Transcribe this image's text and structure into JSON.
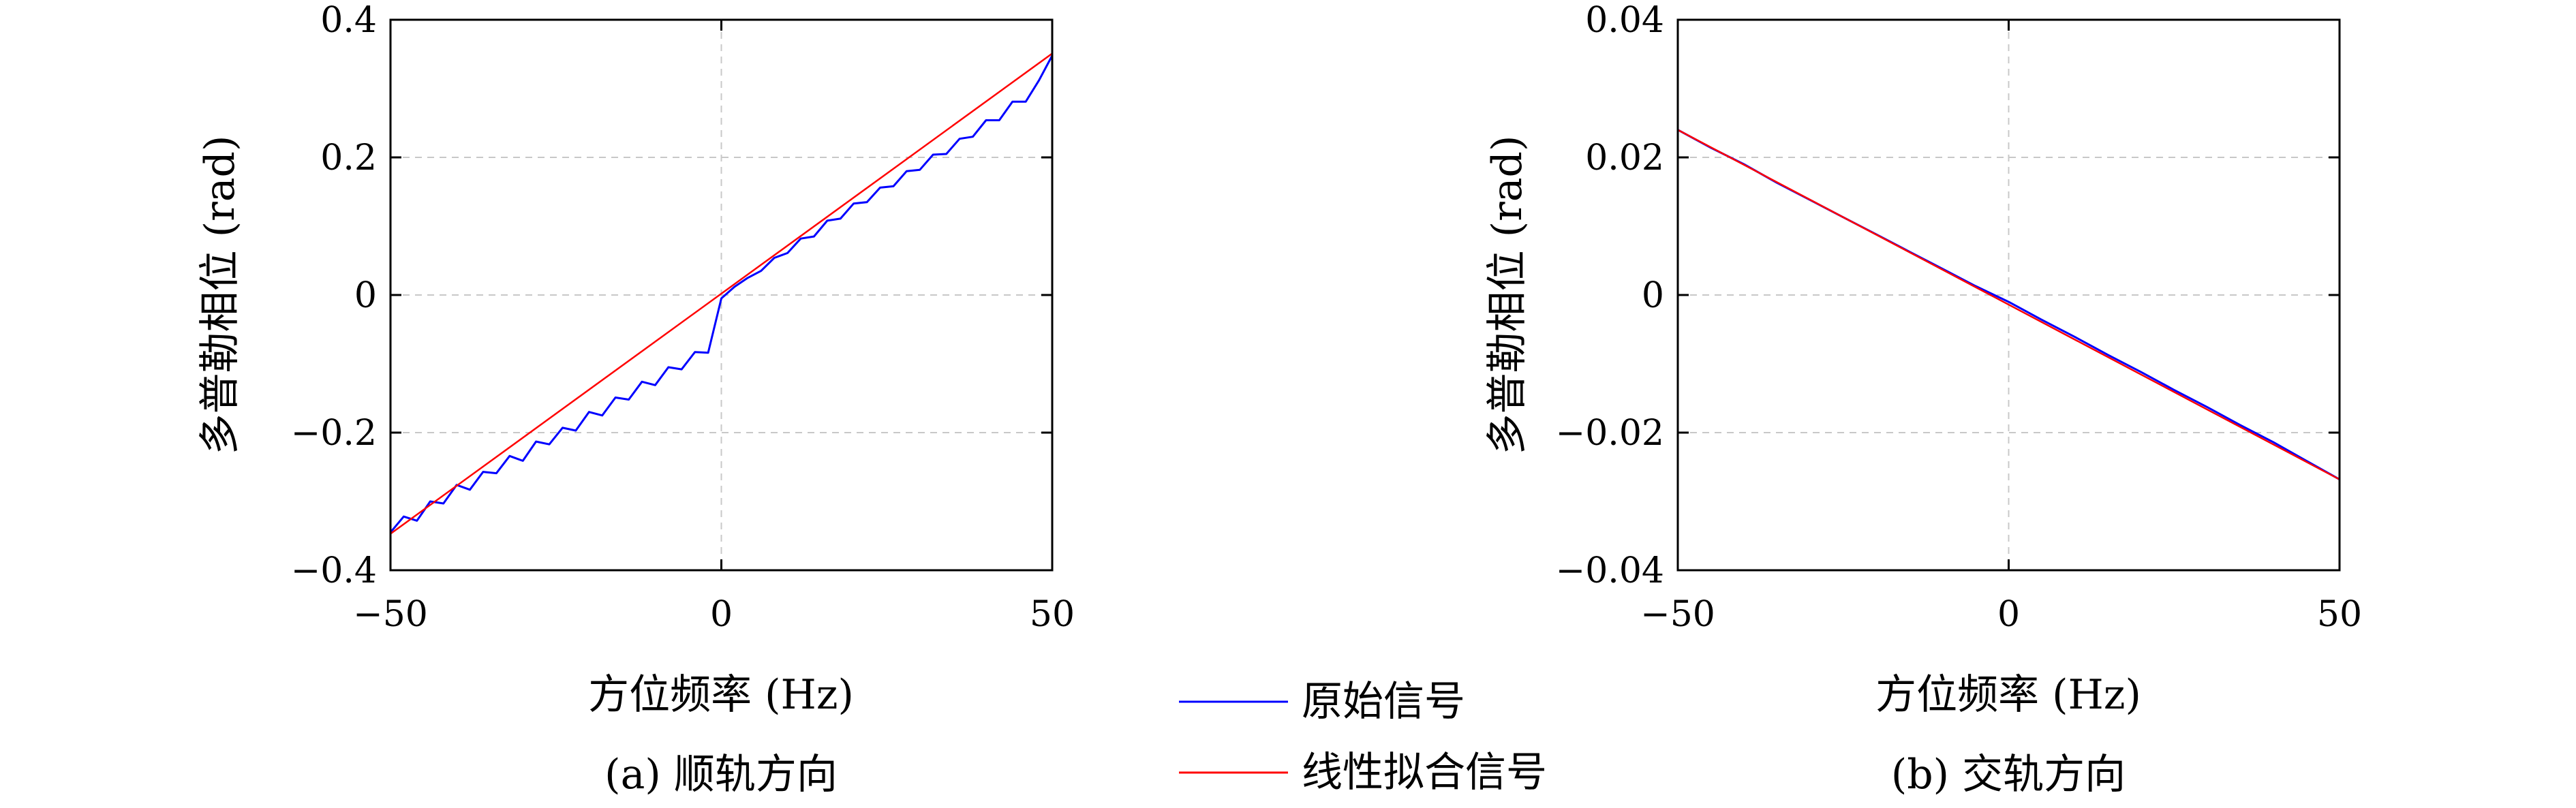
{
  "chart_data": [
    {
      "type": "line",
      "caption": "(a) 顺轨方向",
      "xlabel": "方位频率 (Hz)",
      "ylabel": "多普勒相位 (rad)",
      "xlim": [
        -50,
        50
      ],
      "ylim": [
        -0.4,
        0.4
      ],
      "xticks": [
        -50,
        0,
        50
      ],
      "xtick_labels": [
        "−50",
        "0",
        "50"
      ],
      "yticks": [
        -0.4,
        -0.2,
        0,
        0.2,
        0.4
      ],
      "ytick_labels": [
        "−0.4",
        "−0.2",
        "0",
        "0.2",
        "0.4"
      ],
      "grid": true,
      "series": [
        {
          "name": "原始信号",
          "color": "#0000ff",
          "x": [
            -50,
            -48,
            -46,
            -44,
            -42,
            -40,
            -38,
            -36,
            -34,
            -32,
            -30,
            -28,
            -26,
            -24,
            -22,
            -20,
            -18,
            -16,
            -14,
            -12,
            -10,
            -8,
            -6,
            -4,
            -2,
            0,
            2,
            4,
            6,
            8,
            10,
            12,
            14,
            16,
            18,
            20,
            22,
            24,
            26,
            28,
            30,
            32,
            34,
            36,
            38,
            40,
            42,
            44,
            46,
            48,
            50
          ],
          "y": [
            -0.345,
            -0.322,
            -0.328,
            -0.3,
            -0.303,
            -0.276,
            -0.283,
            -0.257,
            -0.259,
            -0.234,
            -0.241,
            -0.213,
            -0.217,
            -0.193,
            -0.197,
            -0.17,
            -0.175,
            -0.149,
            -0.152,
            -0.126,
            -0.131,
            -0.105,
            -0.108,
            -0.083,
            -0.084,
            -0.005,
            0.012,
            0.025,
            0.035,
            0.054,
            0.061,
            0.082,
            0.085,
            0.108,
            0.111,
            0.133,
            0.135,
            0.156,
            0.158,
            0.18,
            0.182,
            0.204,
            0.205,
            0.227,
            0.23,
            0.254,
            0.254,
            0.281,
            0.281,
            0.312,
            0.348
          ]
        },
        {
          "name": "线性拟合信号",
          "color": "#ff0000",
          "x": [
            -50,
            50
          ],
          "y": [
            -0.347,
            0.351
          ]
        }
      ]
    },
    {
      "type": "line",
      "caption": "(b) 交轨方向",
      "xlabel": "方位频率 (Hz)",
      "ylabel": "多普勒相位 (rad)",
      "xlim": [
        -50,
        50
      ],
      "ylim": [
        -0.04,
        0.04
      ],
      "xticks": [
        -50,
        0,
        50
      ],
      "xtick_labels": [
        "−50",
        "0",
        "50"
      ],
      "yticks": [
        -0.04,
        -0.02,
        0,
        0.02,
        0.04
      ],
      "ytick_labels": [
        "−0.04",
        "−0.02",
        "0",
        "0.02",
        "0.04"
      ],
      "grid": true,
      "series": [
        {
          "name": "原始信号",
          "color": "#0000ff",
          "x": [
            -50,
            -45,
            -40,
            -35,
            -30,
            -25,
            -20,
            -15,
            -10,
            -5,
            0,
            5,
            10,
            15,
            20,
            25,
            30,
            35,
            40,
            45,
            50
          ],
          "y": [
            0.024,
            0.0214,
            0.019,
            0.0163,
            0.0138,
            0.0113,
            0.0088,
            0.0063,
            0.0038,
            0.0013,
            -0.001,
            -0.0036,
            -0.0061,
            -0.0087,
            -0.0112,
            -0.0138,
            -0.0163,
            -0.0189,
            -0.0214,
            -0.0241,
            -0.0268
          ]
        },
        {
          "name": "线性拟合信号",
          "color": "#ff0000",
          "x": [
            -50,
            50
          ],
          "y": [
            0.024,
            -0.0268
          ]
        }
      ]
    }
  ],
  "legend": {
    "placement": "bottom-center",
    "items": [
      {
        "label": "原始信号",
        "color": "#0000ff"
      },
      {
        "label": "线性拟合信号",
        "color": "#ff0000"
      }
    ]
  }
}
